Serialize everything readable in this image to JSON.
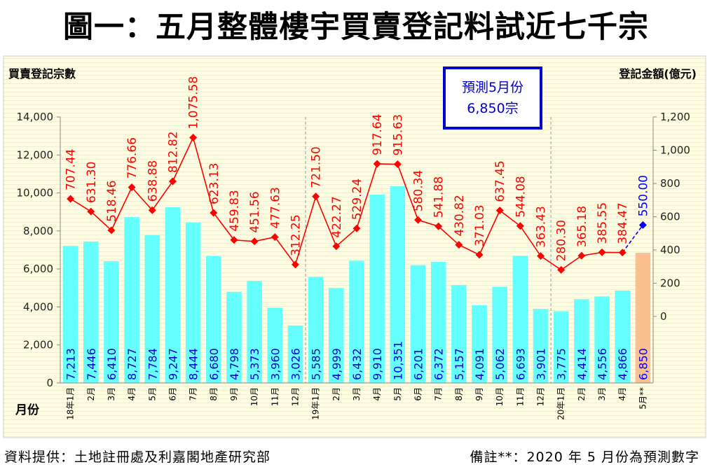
{
  "chart_data": {
    "type": "bar+line",
    "title": "圖一：五月整體樓宇買賣登記料試近七千宗",
    "ylabel_left": "買賣登記宗數",
    "ylabel_right": "登記金額(億元)",
    "xlabel": "月份",
    "ylim_left": [
      0,
      14000
    ],
    "yticks_left": [
      "0",
      "2,000",
      "4,000",
      "6,000",
      "8,000",
      "10,000",
      "12,000",
      "14,000"
    ],
    "ylim_right": [
      -400,
      1200
    ],
    "yticks_right": [
      "0",
      "200",
      "400",
      "600",
      "800",
      "1,000",
      "1,200"
    ],
    "categories": [
      "18年1月",
      "2月",
      "3月",
      "4月",
      "5月",
      "6月",
      "7月",
      "8月",
      "9月",
      "10月",
      "11月",
      "12月",
      "19年1月",
      "2月",
      "3月",
      "4月",
      "5月",
      "6月",
      "7月",
      "8月",
      "9月",
      "10月",
      "11月",
      "12月",
      "20年1月",
      "2月",
      "3月",
      "4月",
      "5月**"
    ],
    "bar_values": [
      7213,
      7446,
      6410,
      8727,
      7784,
      9247,
      8444,
      6680,
      4798,
      5373,
      3960,
      3026,
      5585,
      4999,
      6432,
      9910,
      10351,
      6201,
      6372,
      5157,
      4091,
      5062,
      6693,
      3901,
      3775,
      4414,
      4556,
      4866,
      6850
    ],
    "bar_labels": [
      "7,213",
      "7,446",
      "6,410",
      "8,727",
      "7,784",
      "9,247",
      "8,444",
      "6,680",
      "4,798",
      "5,373",
      "3,960",
      "3,026",
      "5,585",
      "4,999",
      "6,432",
      "9,910",
      "10,351",
      "6,201",
      "6,372",
      "5,157",
      "4,091",
      "5,062",
      "6,693",
      "3,901",
      "3,775",
      "4,414",
      "4,556",
      "4,866",
      "6,850"
    ],
    "line_values": [
      707.44,
      631.3,
      518.46,
      776.66,
      638.88,
      812.82,
      1075.58,
      623.13,
      459.83,
      451.56,
      477.63,
      312.25,
      721.5,
      422.27,
      529.24,
      917.64,
      915.63,
      580.34,
      541.88,
      430.82,
      371.03,
      637.45,
      544.08,
      363.43,
      280.3,
      365.18,
      385.55,
      384.47,
      550.0
    ],
    "line_labels": [
      "707.44",
      "631.30",
      "518.46",
      "776.66",
      "638.88",
      "812.82",
      "1,075.58",
      "623.13",
      "459.83",
      "451.56",
      "477.63",
      "312.25",
      "721.50",
      "422.27",
      "529.24",
      "917.64",
      "915.63",
      "580.34",
      "541.88",
      "430.82",
      "371.03",
      "637.45",
      "544.08",
      "363.43",
      "280.30",
      "365.18",
      "385.55",
      "384.47",
      "550.00"
    ],
    "forecast_index": 28,
    "year_separators_after": [
      11,
      23
    ],
    "annotation": {
      "line1": "預測5月份",
      "line2": "6,850宗"
    },
    "colors": {
      "bar": "#66ffff",
      "bar_forecast": "#fac090",
      "line": "#ff0000",
      "line_forecast": "#0000ff",
      "bar_label": "#0000cc",
      "line_label": "#ff0000",
      "forecast_label": "#0000ff",
      "plot_bg": "#fffde1",
      "annotation_border": "#0000cc"
    }
  },
  "footer": {
    "source": "資料提供：土地註冊處及利嘉閣地產研究部",
    "note": "備註**：2020 年 5 月份為預測數字"
  }
}
